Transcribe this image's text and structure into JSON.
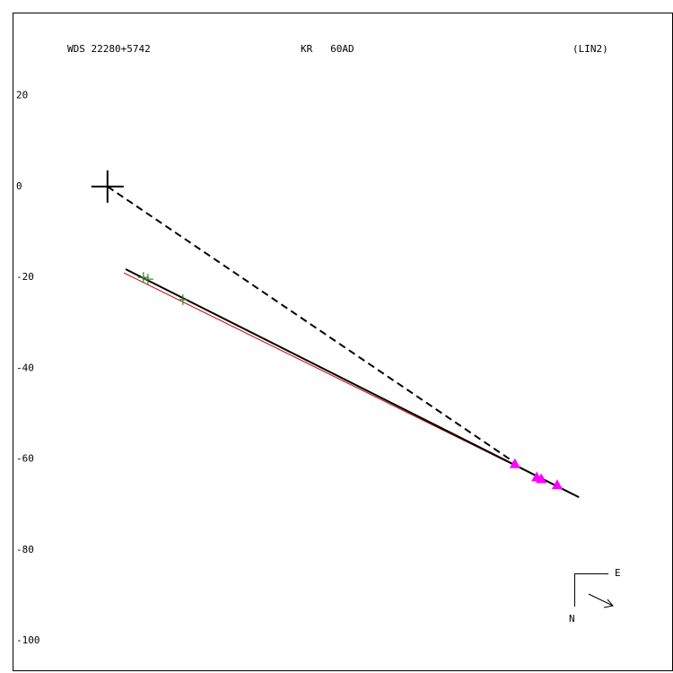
{
  "chart_data": {
    "type": "scatter",
    "title": "WDS 22280+5742",
    "subtitle": "KR   60AD",
    "annotation": "(LIN2)",
    "compass": {
      "east": "E",
      "north": "N"
    },
    "xlim": [
      -20.9,
      124.5
    ],
    "ylim": [
      -106.7,
      38.3
    ],
    "yticks": [
      20,
      0,
      -20,
      -40,
      -60,
      -80,
      -100
    ],
    "primary": {
      "x": 0,
      "y": 0
    },
    "series": [
      {
        "color": "#2e8b2e",
        "marker": "plus",
        "x": [
          7.9,
          8.9,
          16.6
        ],
        "y": [
          -20.0,
          -20.4,
          -24.9
        ]
      },
      {
        "color": "#ff00ff",
        "marker": "triangle",
        "x": [
          89.7,
          94.5,
          95.5,
          99.0
        ],
        "y": [
          -61.0,
          -63.9,
          -64.3,
          -65.6
        ]
      }
    ],
    "lines": [
      {
        "color": "#cc0000",
        "style": "solid",
        "width": 1,
        "x": [
          3.6,
          103.8
        ],
        "y": [
          -19.0,
          -68.4
        ]
      },
      {
        "color": "#000000",
        "style": "solid",
        "width": 2,
        "x": [
          4.0,
          103.8
        ],
        "y": [
          -18.2,
          -68.4
        ]
      },
      {
        "color": "#000000",
        "style": "dashed",
        "width": 2,
        "x": [
          0,
          89.7
        ],
        "y": [
          0,
          -60.8
        ]
      }
    ]
  }
}
